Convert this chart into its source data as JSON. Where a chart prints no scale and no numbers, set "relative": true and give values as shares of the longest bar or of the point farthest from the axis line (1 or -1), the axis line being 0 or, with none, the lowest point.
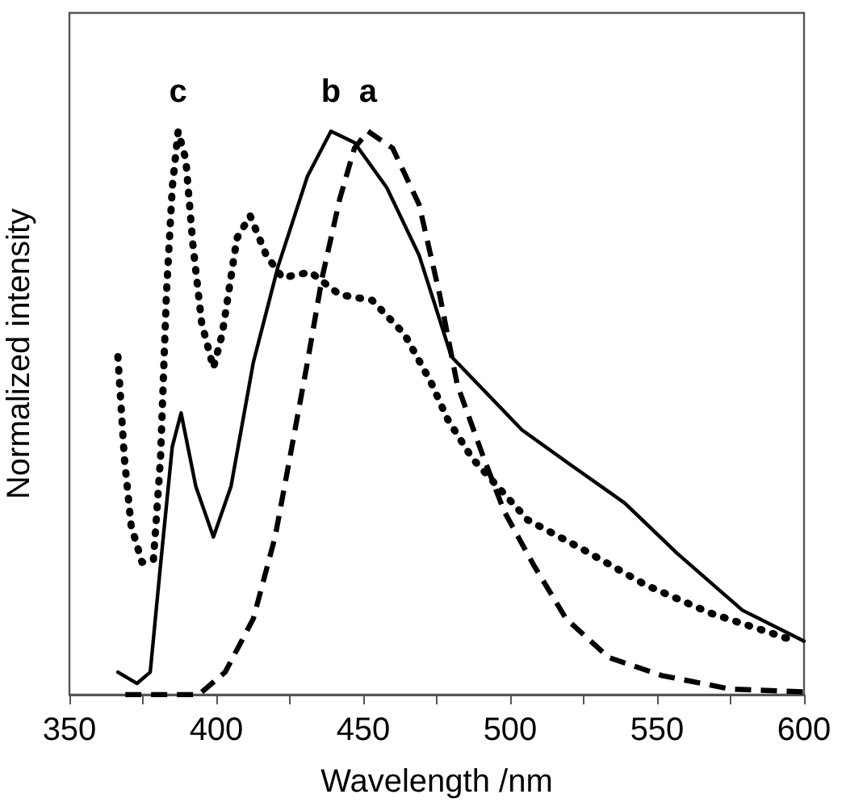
{
  "chart_data": {
    "type": "line",
    "relative": true,
    "xlabel": "Wavelength /nm",
    "ylabel": "Normalized intensity",
    "xlim": [
      350,
      600
    ],
    "xticks": [
      350,
      {
        "value": 375,
        "label": null
      },
      400,
      {
        "value": 425,
        "label": null
      },
      450,
      {
        "value": 475,
        "label": null
      },
      500,
      {
        "value": 525,
        "label": null
      },
      550,
      {
        "value": 575,
        "label": null
      },
      600
    ],
    "marker": "none",
    "grid": false,
    "series": [
      {
        "name": "a",
        "color": "#000000",
        "line_style": "dashed",
        "x": [
          369,
          394,
          403,
          412.6,
          420,
          425,
          431,
          436,
          442,
          447,
          451.6,
          460,
          469,
          476,
          482,
          491,
          498,
          508,
          519,
          533.5,
          551.6,
          575,
          600
        ],
        "values": [
          0,
          0,
          0.04,
          0.135,
          0.28,
          0.42,
          0.59,
          0.74,
          0.88,
          0.97,
          1,
          0.97,
          0.87,
          0.71,
          0.55,
          0.42,
          0.325,
          0.23,
          0.135,
          0.066,
          0.034,
          0.01,
          0.005
        ]
      },
      {
        "name": "b",
        "color": "#000000",
        "line_style": "solid",
        "x": [
          366.5,
          373,
          377.5,
          381,
          385,
          388,
          393,
          399,
          405,
          412.6,
          421,
          431,
          439,
          447,
          458,
          469,
          480,
          504,
          520,
          539,
          557,
          579,
          600
        ],
        "values": [
          0.04,
          0.02,
          0.04,
          0.23,
          0.44,
          0.5,
          0.37,
          0.28,
          0.37,
          0.59,
          0.76,
          0.92,
          1,
          0.98,
          0.9,
          0.78,
          0.6,
          0.47,
          0.41,
          0.34,
          0.25,
          0.15,
          0.095
        ]
      },
      {
        "name": "c",
        "color": "#000000",
        "line_style": "dotted",
        "x": [
          366.5,
          368.7,
          371,
          374.7,
          378.6,
          381,
          383,
          385,
          387,
          389.6,
          392,
          395,
          399,
          402,
          407,
          411.5,
          417,
          422.5,
          432,
          442,
          453,
          464,
          473,
          478.6,
          487,
          506,
          524,
          546,
          568,
          588.5,
          597
        ],
        "values": [
          0.6,
          0.42,
          0.3,
          0.235,
          0.24,
          0.42,
          0.71,
          0.9,
          1,
          0.95,
          0.8,
          0.66,
          0.58,
          0.64,
          0.81,
          0.85,
          0.78,
          0.74,
          0.75,
          0.71,
          0.7,
          0.64,
          0.555,
          0.49,
          0.42,
          0.31,
          0.26,
          0.195,
          0.145,
          0.11,
          0.095
        ]
      }
    ]
  }
}
